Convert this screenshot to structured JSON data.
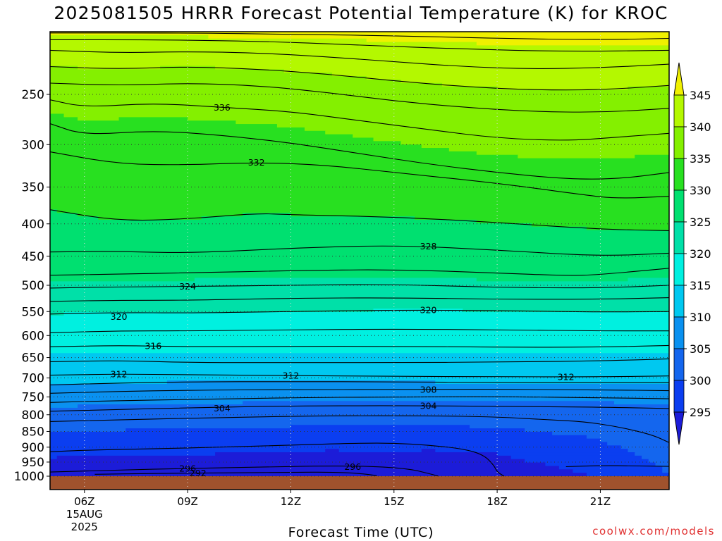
{
  "title": "2025081505 HRRR Forecast Potential Temperature (K) for KROC",
  "credit": "coolwx.com/models",
  "colors": {
    "ground": "#a0522d",
    "band_colors": [
      "#1c1cd8",
      "#0b3ef0",
      "#1466ee",
      "#0a91f0",
      "#00c8f0",
      "#00f0e0",
      "#00e0a8",
      "#00e070",
      "#28e020",
      "#84f000",
      "#b4f800",
      "#f0f000"
    ],
    "contour": "#000000",
    "grid": "#555555"
  },
  "chart_data": {
    "type": "heatmap",
    "title": "2025081505 HRRR Forecast Potential Temperature (K) for KROC",
    "xlabel": "Forecast Time (UTC)",
    "ylabel": "",
    "y_scale": "log",
    "y_reversed": true,
    "y_units": "hPa",
    "xlim": [
      5,
      23
    ],
    "ylim": [
      1000,
      200
    ],
    "x_ticks": [
      {
        "x": 6,
        "label": "06Z",
        "sub": [
          "15AUG",
          "2025"
        ]
      },
      {
        "x": 9,
        "label": "09Z"
      },
      {
        "x": 12,
        "label": "12Z"
      },
      {
        "x": 15,
        "label": "15Z"
      },
      {
        "x": 18,
        "label": "18Z"
      },
      {
        "x": 21,
        "label": "21Z"
      }
    ],
    "y_ticks": [
      250,
      300,
      350,
      400,
      450,
      500,
      550,
      600,
      650,
      700,
      750,
      800,
      850,
      900,
      950,
      1000
    ],
    "colorbar": {
      "labels": [
        295,
        300,
        305,
        310,
        315,
        320,
        325,
        330,
        335,
        340,
        345
      ],
      "min": 290,
      "max": 350,
      "extend": "both"
    },
    "x": [
      5,
      6,
      7,
      8,
      9,
      10,
      11,
      12,
      13,
      14,
      15,
      16,
      17,
      18,
      19,
      20,
      21,
      22,
      23
    ],
    "contours": [
      {
        "value": 292,
        "points": [
          [
            6.3,
            993
          ],
          [
            8,
            990
          ],
          [
            10,
            988
          ],
          [
            12,
            986
          ],
          [
            13.2,
            985
          ],
          [
            14,
            990
          ],
          [
            14.5,
            998
          ]
        ]
      },
      {
        "value": 296,
        "points": [
          [
            5,
            985
          ],
          [
            7,
            978
          ],
          [
            9,
            972
          ],
          [
            11,
            968
          ],
          [
            13,
            963
          ],
          [
            14.5,
            965
          ],
          [
            15.5,
            975
          ],
          [
            16,
            990
          ],
          [
            16.3,
            1000
          ]
        ]
      },
      {
        "value": 300,
        "points": [
          [
            5,
            915
          ],
          [
            6,
            910
          ],
          [
            8,
            905
          ],
          [
            10,
            900
          ],
          [
            12,
            893
          ],
          [
            14,
            887
          ],
          [
            15,
            887
          ],
          [
            16,
            893
          ],
          [
            17,
            905
          ],
          [
            17.6,
            925
          ],
          [
            17.9,
            960
          ],
          [
            18,
            985
          ],
          [
            18.2,
            1000
          ]
        ]
      },
      {
        "value": 300,
        "points": [
          [
            20,
            966
          ],
          [
            21,
            962
          ],
          [
            22,
            963
          ],
          [
            23,
            965
          ]
        ]
      },
      {
        "value": 302,
        "points": [
          [
            5,
            820
          ],
          [
            7,
            815
          ],
          [
            10,
            808
          ],
          [
            13,
            803
          ],
          [
            16,
            803
          ],
          [
            18,
            806
          ],
          [
            19.5,
            815
          ],
          [
            20.5,
            820
          ],
          [
            21.5,
            835
          ],
          [
            22.5,
            860
          ],
          [
            23,
            885
          ]
        ]
      },
      {
        "value": 304,
        "points": [
          [
            5,
            790
          ],
          [
            7,
            785
          ],
          [
            9,
            780
          ],
          [
            12,
            775
          ],
          [
            15,
            774
          ],
          [
            18,
            776
          ],
          [
            21,
            778
          ],
          [
            23,
            782
          ]
        ]
      },
      {
        "value": 306,
        "points": [
          [
            5,
            765
          ],
          [
            7,
            760
          ],
          [
            9,
            757
          ],
          [
            12,
            752
          ],
          [
            15,
            750
          ],
          [
            18,
            749
          ],
          [
            21,
            752
          ],
          [
            23,
            755
          ]
        ]
      },
      {
        "value": 308,
        "points": [
          [
            5,
            740
          ],
          [
            7,
            735
          ],
          [
            9,
            732
          ],
          [
            12,
            730
          ],
          [
            15,
            730
          ],
          [
            18,
            729
          ],
          [
            21,
            731
          ],
          [
            23,
            733
          ]
        ]
      },
      {
        "value": 310,
        "points": [
          [
            5,
            718
          ],
          [
            7,
            713
          ],
          [
            9,
            710
          ],
          [
            12,
            709
          ],
          [
            15,
            710
          ],
          [
            18,
            712
          ],
          [
            21,
            712
          ],
          [
            23,
            712
          ]
        ]
      },
      {
        "value": 312,
        "points": [
          [
            5,
            693
          ],
          [
            7,
            690
          ],
          [
            9,
            692
          ],
          [
            12,
            694
          ],
          [
            15,
            696
          ],
          [
            18,
            697
          ],
          [
            21,
            697
          ],
          [
            23,
            695
          ]
        ]
      },
      {
        "value": 314,
        "points": [
          [
            5,
            660
          ],
          [
            7,
            657
          ],
          [
            9,
            662
          ],
          [
            12,
            662
          ],
          [
            15,
            662
          ],
          [
            18,
            661
          ],
          [
            21,
            658
          ],
          [
            23,
            653
          ]
        ]
      },
      {
        "value": 316,
        "points": [
          [
            5,
            625
          ],
          [
            7,
            622
          ],
          [
            9,
            625
          ],
          [
            12,
            624
          ],
          [
            15,
            624
          ],
          [
            18,
            626
          ],
          [
            21,
            626
          ],
          [
            23,
            622
          ]
        ]
      },
      {
        "value": 318,
        "points": [
          [
            5,
            594
          ],
          [
            7,
            590
          ],
          [
            9,
            590
          ],
          [
            12,
            588
          ],
          [
            15,
            586
          ],
          [
            18,
            588
          ],
          [
            21,
            590
          ],
          [
            23,
            590
          ]
        ]
      },
      {
        "value": 320,
        "points": [
          [
            5,
            555
          ],
          [
            7,
            552
          ],
          [
            9,
            553
          ],
          [
            12,
            550
          ],
          [
            15,
            547
          ],
          [
            18,
            548
          ],
          [
            21,
            551
          ],
          [
            23,
            550
          ]
        ]
      },
      {
        "value": 322,
        "points": [
          [
            5,
            530
          ],
          [
            7,
            528
          ],
          [
            9,
            528
          ],
          [
            12,
            524
          ],
          [
            15,
            523
          ],
          [
            18,
            526
          ],
          [
            21,
            526
          ],
          [
            23,
            523
          ]
        ]
      },
      {
        "value": 324,
        "points": [
          [
            5,
            505
          ],
          [
            7,
            503
          ],
          [
            9,
            502
          ],
          [
            12,
            500
          ],
          [
            15,
            498
          ],
          [
            18,
            504
          ],
          [
            21,
            505
          ],
          [
            23,
            500
          ]
        ]
      },
      {
        "value": 326,
        "points": [
          [
            5,
            482
          ],
          [
            7,
            480
          ],
          [
            9,
            478
          ],
          [
            12,
            474
          ],
          [
            15,
            472
          ],
          [
            18,
            478
          ],
          [
            20,
            483
          ],
          [
            21,
            481
          ],
          [
            23,
            470
          ]
        ]
      },
      {
        "value": 328,
        "points": [
          [
            5,
            443
          ],
          [
            7,
            442
          ],
          [
            9,
            445
          ],
          [
            12,
            437
          ],
          [
            15,
            432
          ],
          [
            18,
            440
          ],
          [
            21,
            450
          ],
          [
            23,
            445
          ]
        ]
      },
      {
        "value": 330,
        "points": [
          [
            5,
            380
          ],
          [
            7,
            396
          ],
          [
            9,
            393
          ],
          [
            11,
            385
          ],
          [
            12,
            387
          ],
          [
            15,
            390
          ],
          [
            18,
            398
          ],
          [
            21,
            408
          ],
          [
            23,
            410
          ]
        ]
      },
      {
        "value": 332,
        "points": [
          [
            5,
            308
          ],
          [
            7,
            322
          ],
          [
            9,
            323
          ],
          [
            11,
            320
          ],
          [
            13,
            323
          ],
          [
            15,
            332
          ],
          [
            18,
            345
          ],
          [
            20.5,
            360
          ],
          [
            21.5,
            365
          ],
          [
            23,
            362
          ]
        ]
      },
      {
        "value": 334,
        "points": [
          [
            5,
            278
          ],
          [
            6,
            290
          ],
          [
            8,
            285
          ],
          [
            10,
            290
          ],
          [
            12,
            298
          ],
          [
            14,
            310
          ],
          [
            16,
            322
          ],
          [
            18,
            332
          ],
          [
            20,
            340
          ],
          [
            21.5,
            340
          ],
          [
            23,
            332
          ]
        ]
      },
      {
        "value": 336,
        "points": [
          [
            5,
            255
          ],
          [
            6,
            262
          ],
          [
            8,
            258
          ],
          [
            10,
            262
          ],
          [
            12,
            266
          ],
          [
            14,
            275
          ],
          [
            16,
            284
          ],
          [
            18,
            293
          ],
          [
            20,
            296
          ],
          [
            21.5,
            292
          ],
          [
            23,
            288
          ]
        ]
      },
      {
        "value": 338,
        "points": [
          [
            5,
            240
          ],
          [
            7,
            242
          ],
          [
            9,
            240
          ],
          [
            11,
            242
          ],
          [
            13,
            248
          ],
          [
            15,
            256
          ],
          [
            17,
            262
          ],
          [
            19,
            266
          ],
          [
            21,
            267
          ],
          [
            23,
            263
          ]
        ]
      },
      {
        "value": 340,
        "points": [
          [
            5,
            226
          ],
          [
            7,
            228
          ],
          [
            9,
            226
          ],
          [
            11,
            228
          ],
          [
            13,
            232
          ],
          [
            15,
            238
          ],
          [
            17,
            243
          ],
          [
            19,
            246
          ],
          [
            21,
            246
          ],
          [
            23,
            242
          ]
        ]
      },
      {
        "value": 342,
        "points": [
          [
            5,
            213
          ],
          [
            7,
            215
          ],
          [
            9,
            214
          ],
          [
            11,
            215
          ],
          [
            13,
            218
          ],
          [
            15,
            222
          ],
          [
            17,
            226
          ],
          [
            19,
            228
          ],
          [
            21,
            227
          ],
          [
            23,
            224
          ]
        ]
      },
      {
        "value": 344,
        "points": [
          [
            5,
            205
          ],
          [
            8,
            205
          ],
          [
            11,
            206
          ],
          [
            14,
            209
          ],
          [
            17,
            212
          ],
          [
            20,
            214
          ],
          [
            23,
            213
          ]
        ]
      },
      {
        "value": 346,
        "points": [
          [
            5,
            200
          ],
          [
            9,
            200
          ],
          [
            12,
            201
          ],
          [
            15,
            202
          ],
          [
            18,
            204
          ],
          [
            21,
            205
          ],
          [
            23,
            204
          ]
        ]
      }
    ],
    "contour_labels": [
      {
        "text": "292",
        "x": 9.3,
        "y": 988
      },
      {
        "text": "296",
        "x": 9.0,
        "y": 972
      },
      {
        "text": "296",
        "x": 13.8,
        "y": 966
      },
      {
        "text": "304",
        "x": 10.0,
        "y": 781
      },
      {
        "text": "304",
        "x": 16.0,
        "y": 774
      },
      {
        "text": "308",
        "x": 16.0,
        "y": 730
      },
      {
        "text": "312",
        "x": 7.0,
        "y": 690
      },
      {
        "text": "312",
        "x": 12.0,
        "y": 694
      },
      {
        "text": "312",
        "x": 20.0,
        "y": 697
      },
      {
        "text": "316",
        "x": 8.0,
        "y": 623
      },
      {
        "text": "320",
        "x": 7.0,
        "y": 560
      },
      {
        "text": "320",
        "x": 16.0,
        "y": 547
      },
      {
        "text": "324",
        "x": 9.0,
        "y": 502
      },
      {
        "text": "328",
        "x": 16.0,
        "y": 434
      },
      {
        "text": "332",
        "x": 11.0,
        "y": 320
      },
      {
        "text": "336",
        "x": 10.0,
        "y": 262
      }
    ]
  }
}
